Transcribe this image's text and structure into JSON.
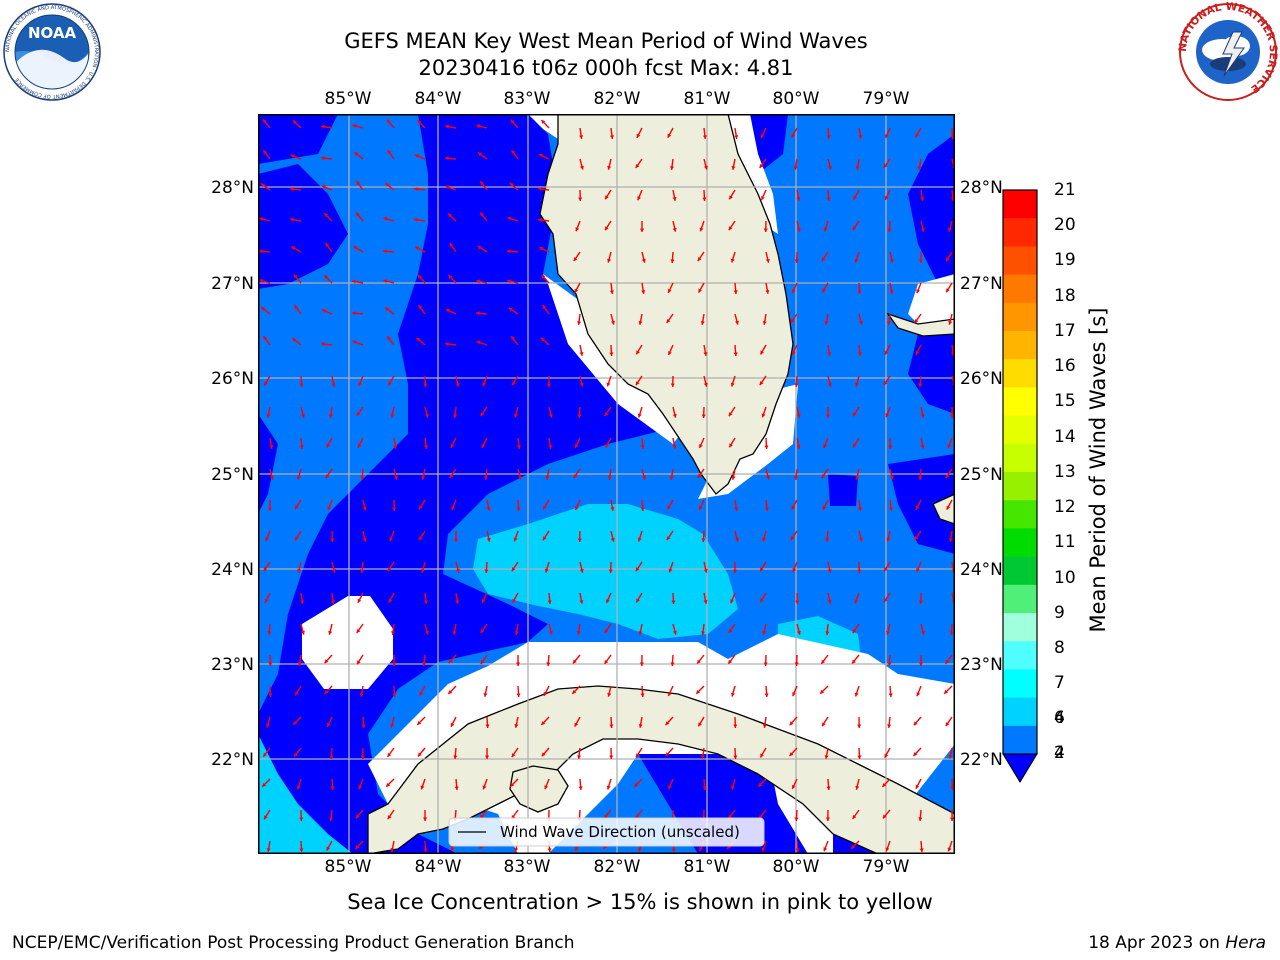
{
  "title": {
    "line1": "GEFS MEAN Key West Mean Period of Wind Waves",
    "line2": "20230416 t06z 000h fcst   Max: 4.81"
  },
  "map": {
    "lon_labels": [
      "85°W",
      "84°W",
      "83°W",
      "82°W",
      "81°W",
      "80°W",
      "79°W"
    ],
    "lat_labels": [
      "28°N",
      "27°N",
      "26°N",
      "25°N",
      "24°N",
      "23°N",
      "22°N"
    ],
    "legend_label": "Wind Wave Direction (unscaled)",
    "arrow_color": "#ff0000",
    "land_color": "#eeeedc"
  },
  "colorbar": {
    "label": "Mean Period of Wind Waves [s]",
    "ticks": [
      "21",
      "20",
      "19",
      "18",
      "17",
      "16",
      "15",
      "14",
      "13",
      "12",
      "11",
      "10",
      "9",
      "8",
      "7",
      "6",
      "4",
      "2"
    ],
    "colors": [
      "#ff0000",
      "#ff2800",
      "#ff5000",
      "#ff7800",
      "#ff9600",
      "#ffb400",
      "#ffdc00",
      "#ffff00",
      "#e6ff00",
      "#c8ff00",
      "#96f000",
      "#46e600",
      "#00dc00",
      "#00c832",
      "#50f078",
      "#a0ffdc",
      "#50ffff",
      "#00ffff",
      "#00d2ff",
      "#0078ff"
    ],
    "extend_color": "#0000ff"
  },
  "caption": "Sea Ice Concentration > 15% is shown in pink to yellow",
  "footer": {
    "left": "NCEP/EMC/Verification Post Processing Product Generation Branch",
    "date": "18 Apr 2023 on ",
    "machine": "Hera"
  },
  "logos": {
    "noaa_text": "NOAA",
    "noaa_ring": "NATIONAL OCEANIC AND ATMOSPHERIC ADMINISTRATION · U.S. DEPARTMENT OF COMMERCE",
    "nws_ring": "NATIONAL WEATHER SERVICE"
  }
}
